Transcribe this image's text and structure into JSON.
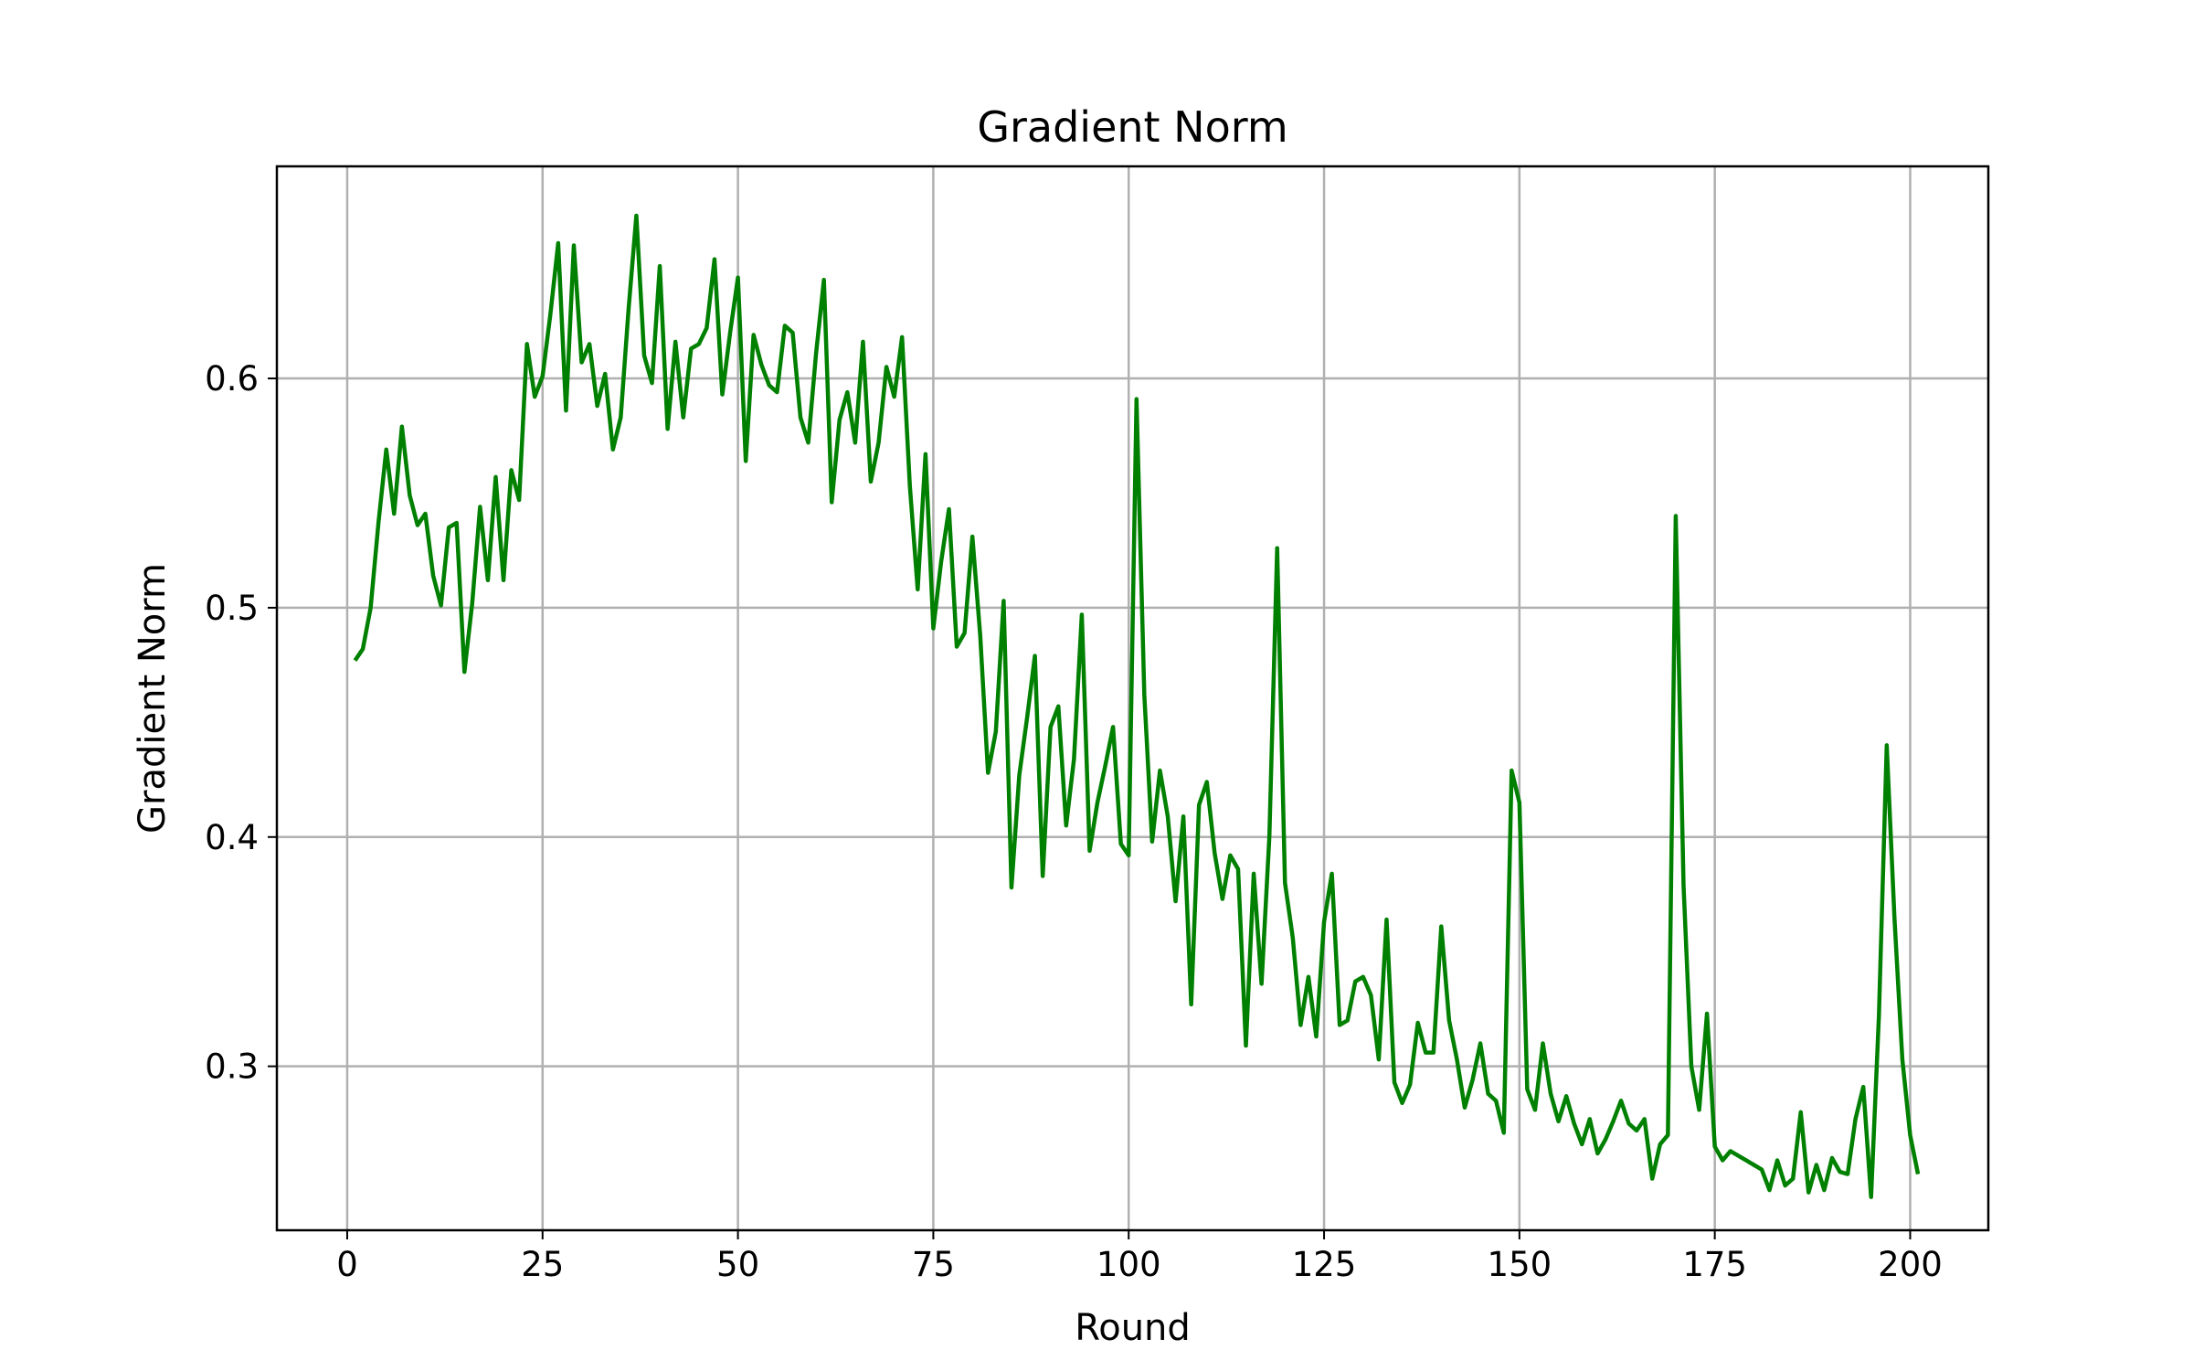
{
  "chart_data": {
    "type": "line",
    "title": "Gradient Norm",
    "xlabel": "Round",
    "ylabel": "Gradient Norm",
    "xlim": [
      -9,
      210
    ],
    "ylim": [
      0.2285,
      0.6925
    ],
    "x_ticks": [
      0,
      25,
      50,
      75,
      100,
      125,
      150,
      175,
      200
    ],
    "x_tick_labels": [
      "0",
      "25",
      "50",
      "75",
      "100",
      "125",
      "150",
      "175",
      "200"
    ],
    "y_ticks": [
      0.3,
      0.4,
      0.5,
      0.6
    ],
    "y_tick_labels": [
      "0.3",
      "0.4",
      "0.5",
      "0.6"
    ],
    "grid": true,
    "series": [
      {
        "color": "#008000",
        "x_start": 1,
        "x_step": 1,
        "values": [
          0.477,
          0.482,
          0.5,
          0.537,
          0.569,
          0.541,
          0.579,
          0.549,
          0.536,
          0.541,
          0.514,
          0.501,
          0.535,
          0.537,
          0.472,
          0.502,
          0.544,
          0.512,
          0.557,
          0.512,
          0.56,
          0.547,
          0.615,
          0.592,
          0.601,
          0.628,
          0.659,
          0.586,
          0.658,
          0.607,
          0.615,
          0.588,
          0.602,
          0.569,
          0.583,
          0.63,
          0.671,
          0.61,
          0.598,
          0.649,
          0.578,
          0.616,
          0.583,
          0.613,
          0.615,
          0.622,
          0.652,
          0.593,
          0.62,
          0.644,
          0.564,
          0.619,
          0.606,
          0.597,
          0.594,
          0.623,
          0.62,
          0.583,
          0.572,
          0.611,
          0.643,
          0.546,
          0.582,
          0.594,
          0.572,
          0.616,
          0.555,
          0.572,
          0.605,
          0.592,
          0.618,
          0.553,
          0.508,
          0.567,
          0.491,
          0.52,
          0.543,
          0.483,
          0.489,
          0.531,
          0.488,
          0.428,
          0.446,
          0.503,
          0.378,
          0.427,
          0.452,
          0.479,
          0.383,
          0.448,
          0.457,
          0.405,
          0.434,
          0.497,
          0.394,
          0.415,
          0.431,
          0.448,
          0.397,
          0.392,
          0.591,
          0.462,
          0.398,
          0.429,
          0.409,
          0.372,
          0.409,
          0.327,
          0.414,
          0.424,
          0.393,
          0.373,
          0.392,
          0.386,
          0.309,
          0.384,
          0.336,
          0.4,
          0.526,
          0.38,
          0.356,
          0.318,
          0.339,
          0.313,
          0.363,
          0.384,
          0.318,
          0.32,
          0.337,
          0.339,
          0.331,
          0.303,
          0.364,
          0.293,
          0.284,
          0.292,
          0.319,
          0.306,
          0.306,
          0.361,
          0.32,
          0.303,
          0.282,
          0.294,
          0.31,
          0.288,
          0.285,
          0.271,
          0.429,
          0.415,
          0.29,
          0.281,
          0.31,
          0.288,
          0.276,
          0.287,
          0.275,
          0.266,
          0.277,
          0.262,
          0.268,
          0.276,
          0.285,
          0.275,
          0.272,
          0.277,
          0.251,
          0.266,
          0.27,
          0.54,
          0.379,
          0.3,
          0.281,
          0.323,
          0.265,
          0.259,
          0.263,
          0.261,
          0.259,
          0.257,
          0.255,
          0.246,
          0.259,
          0.248,
          0.251,
          0.28,
          0.245,
          0.257,
          0.246,
          0.26,
          0.254,
          0.253,
          0.277,
          0.291,
          0.243,
          0.322,
          0.44,
          0.364,
          0.303,
          0.27,
          0.253
        ]
      }
    ]
  }
}
